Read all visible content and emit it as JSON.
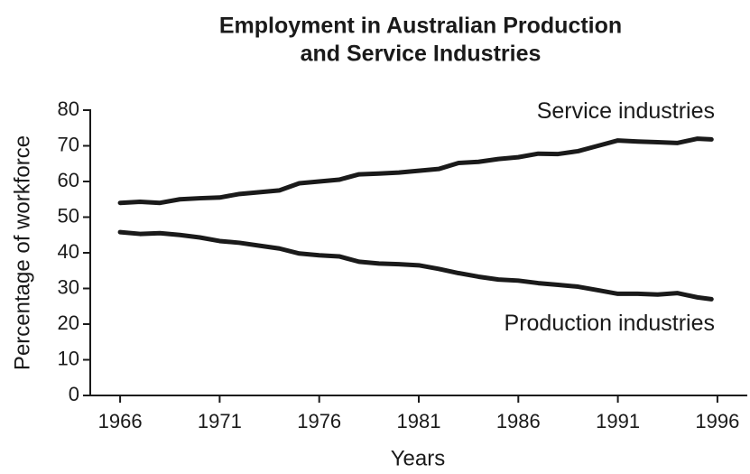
{
  "chart_data": {
    "type": "line",
    "title": [
      "Employment in Australian Production",
      "and Service Industries"
    ],
    "x_label": "Years",
    "y_label": "Percentage of workforce",
    "x": [
      1966,
      1967,
      1968,
      1969,
      1970,
      1971,
      1972,
      1973,
      1974,
      1975,
      1976,
      1977,
      1978,
      1979,
      1980,
      1981,
      1982,
      1983,
      1984,
      1985,
      1986,
      1987,
      1988,
      1989,
      1990,
      1991,
      1992,
      1993,
      1994,
      1995,
      1995.7
    ],
    "series": [
      {
        "name": "Service industries",
        "color": "#1a1a1a",
        "values": [
          54,
          54.3,
          54,
          55,
          55.3,
          55.5,
          56.5,
          57,
          57.5,
          59.5,
          60,
          60.5,
          62,
          62.2,
          62.5,
          63,
          63.5,
          65.2,
          65.5,
          66.3,
          66.8,
          67.8,
          67.7,
          68.5,
          70,
          71.5,
          71.2,
          71,
          70.8,
          72,
          71.8
        ]
      },
      {
        "name": "Production industries",
        "color": "#1a1a1a",
        "values": [
          45.8,
          45.3,
          45.5,
          45,
          44.3,
          43.3,
          42.8,
          42,
          41.2,
          39.8,
          39.3,
          39,
          37.5,
          37,
          36.8,
          36.5,
          35.5,
          34.3,
          33.3,
          32.5,
          32.2,
          31.5,
          31,
          30.5,
          29.5,
          28.5,
          28.5,
          28.3,
          28.7,
          27.5,
          27
        ]
      }
    ],
    "xlim": [
      1964.5,
      1997.5
    ],
    "xticks": [
      1966,
      1971,
      1976,
      1981,
      1986,
      1991,
      1996
    ],
    "ylim": [
      0,
      80
    ],
    "yticks": [
      0,
      10,
      20,
      30,
      40,
      50,
      60,
      70,
      80
    ],
    "grid": false
  }
}
